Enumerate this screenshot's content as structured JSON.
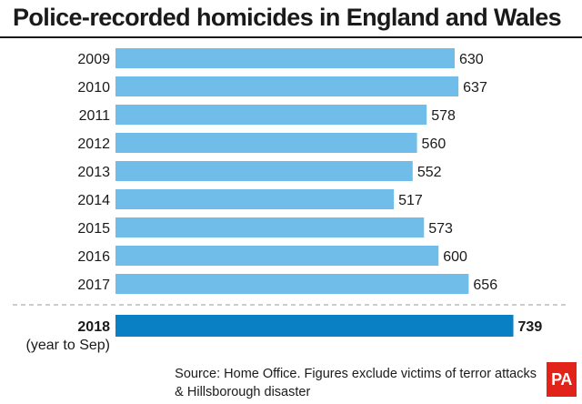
{
  "title": "Police-recorded homicides in England and Wales",
  "source_line1": "Source: Home Office. Figures exclude victims of terror attacks",
  "source_line2": "& Hillsborough disaster",
  "logo_text": "PA",
  "colors": {
    "bar": "#6fbde8",
    "highlight_bar": "#0a80c4",
    "logo": "#e2231a",
    "text": "#1a1a1a"
  },
  "chart_data": {
    "type": "bar",
    "orientation": "horizontal",
    "categories": [
      "2009",
      "2010",
      "2011",
      "2012",
      "2013",
      "2014",
      "2015",
      "2016",
      "2017",
      "2018"
    ],
    "category_sublabels": [
      "",
      "",
      "",
      "",
      "",
      "",
      "",
      "",
      "",
      "(year to Sep)"
    ],
    "values": [
      630,
      637,
      578,
      560,
      552,
      517,
      573,
      600,
      656,
      739
    ],
    "highlight_index": 9,
    "title": "Police-recorded homicides in England and Wales",
    "xlabel": "",
    "ylabel": "",
    "grid": false,
    "legend": "none"
  }
}
